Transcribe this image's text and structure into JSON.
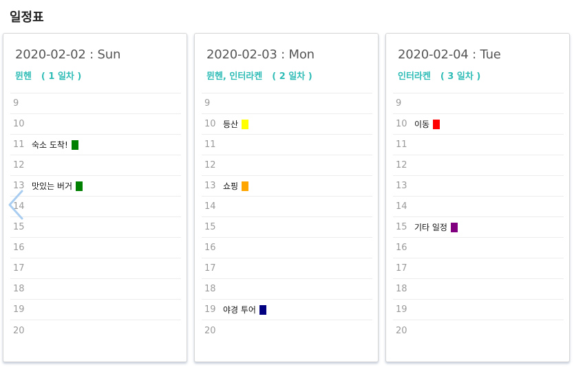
{
  "page": {
    "title": "일정표"
  },
  "days": [
    {
      "date": "2020-02-02 : Sun",
      "location": "뮌헨",
      "day_label": "( 1 일차 )",
      "slots": [
        {
          "hour": "9"
        },
        {
          "hour": "10"
        },
        {
          "hour": "11",
          "event": {
            "title": "숙소 도착!",
            "color": "#008000"
          }
        },
        {
          "hour": "12"
        },
        {
          "hour": "13",
          "event": {
            "title": "맛있는 버거",
            "color": "#008000"
          }
        },
        {
          "hour": "14"
        },
        {
          "hour": "15"
        },
        {
          "hour": "16"
        },
        {
          "hour": "17"
        },
        {
          "hour": "18"
        },
        {
          "hour": "19"
        },
        {
          "hour": "20"
        }
      ]
    },
    {
      "date": "2020-02-03 : Mon",
      "location": "뮌헨, 인터라켄",
      "day_label": "( 2 일차 )",
      "slots": [
        {
          "hour": "9"
        },
        {
          "hour": "10",
          "event": {
            "title": "등산",
            "color": "#ffff00"
          }
        },
        {
          "hour": "11"
        },
        {
          "hour": "12"
        },
        {
          "hour": "13",
          "event": {
            "title": "쇼핑",
            "color": "#ffa500"
          }
        },
        {
          "hour": "14"
        },
        {
          "hour": "15"
        },
        {
          "hour": "16"
        },
        {
          "hour": "17"
        },
        {
          "hour": "18"
        },
        {
          "hour": "19",
          "event": {
            "title": "야경 투어",
            "color": "#000080"
          }
        },
        {
          "hour": "20"
        }
      ]
    },
    {
      "date": "2020-02-04 : Tue",
      "location": "인터라켄",
      "day_label": "( 3 일차 )",
      "slots": [
        {
          "hour": "9"
        },
        {
          "hour": "10",
          "event": {
            "title": "이동",
            "color": "#ff0000"
          }
        },
        {
          "hour": "11"
        },
        {
          "hour": "12"
        },
        {
          "hour": "13"
        },
        {
          "hour": "14"
        },
        {
          "hour": "15",
          "event": {
            "title": "기타 일정",
            "color": "#800080"
          }
        },
        {
          "hour": "16"
        },
        {
          "hour": "17"
        },
        {
          "hour": "18"
        },
        {
          "hour": "19"
        },
        {
          "hour": "20"
        }
      ]
    }
  ],
  "nav": {
    "prev_icon": "chevron-left-icon",
    "arrow_color": "#a9cdf0"
  }
}
